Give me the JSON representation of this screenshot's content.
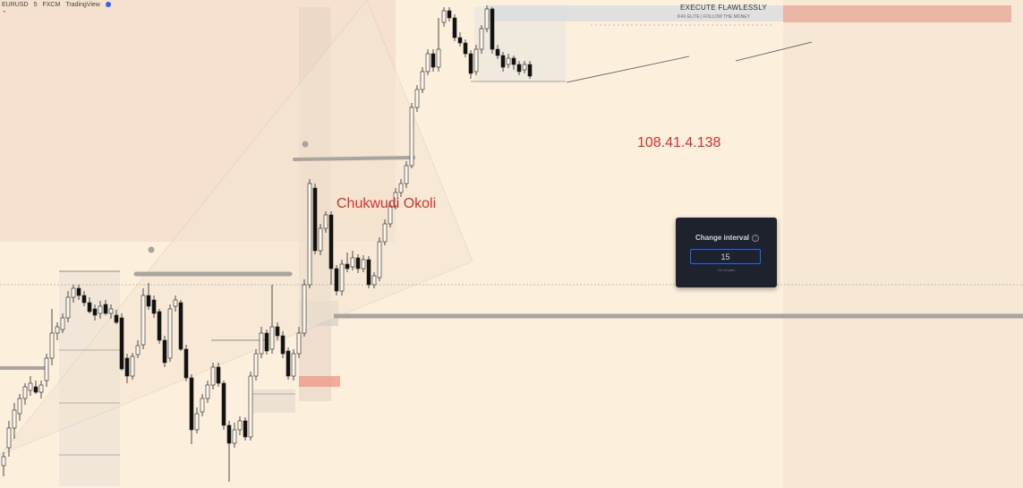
{
  "header": {
    "symbol": "EURUSD",
    "interval": "5",
    "exchange": "FXCM",
    "source": "TradingView"
  },
  "branding": {
    "line1": "EXECUTE FLAWLESSLY",
    "line2": "K4X ELITE | FOLLOW THE MONEY"
  },
  "watermarks": {
    "ip": "108.41.4.138",
    "name": "Chukwudi Okoli"
  },
  "dialog": {
    "title": "Change interval",
    "input_value": "15",
    "hint": "15 minutes"
  },
  "colors": {
    "background": "#fcefdc",
    "dialog_bg": "#1e222d",
    "dialog_accent": "#2962ff",
    "watermark": "#d32f2f",
    "candle": "#111111"
  }
}
